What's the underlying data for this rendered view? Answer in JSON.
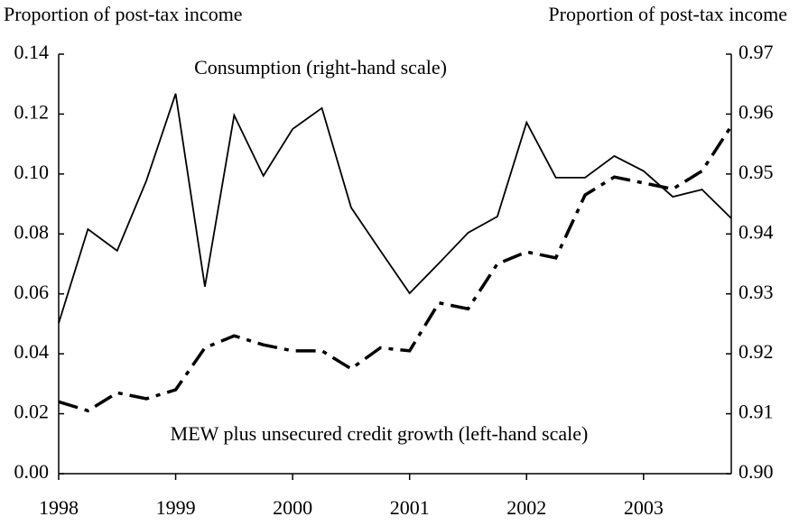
{
  "chart_data": {
    "type": "line",
    "left_axis_label": "Proportion of post-tax income",
    "right_axis_label": "Proportion of post-tax income",
    "annotations": [
      "Consumption (right-hand scale)",
      "MEW plus unsecured credit growth (left-hand scale)"
    ],
    "x": [
      1998,
      1998.25,
      1998.5,
      1998.75,
      1999,
      1999.25,
      1999.5,
      1999.75,
      2000,
      2000.25,
      2000.5,
      2000.75,
      2001,
      2001.25,
      2001.5,
      2001.75,
      2002,
      2002.25,
      2002.5,
      2002.75,
      2003,
      2003.25,
      2003.5,
      2003.75
    ],
    "xlim": [
      1998,
      2003.75
    ],
    "xticks": [
      1998,
      1999,
      2000,
      2001,
      2002,
      2003
    ],
    "ylim": [
      0,
      0.14
    ],
    "yticks": [
      {
        "value": 0,
        "label": "0.00"
      },
      0.02,
      0.04,
      0.06,
      0.08,
      {
        "value": 0.1,
        "label": "0.10"
      },
      0.12,
      0.14
    ],
    "y2lim": [
      0.9,
      0.97
    ],
    "y2ticks": [
      {
        "value": 0.9,
        "label": "0.90"
      },
      0.91,
      0.92,
      0.93,
      0.94,
      0.95,
      0.96,
      0.97
    ],
    "series": [
      {
        "name": "MEW plus unsecured credit growth",
        "color": "#000000",
        "axis": "y",
        "dash": "dashdot",
        "values": [
          0.024,
          0.021,
          0.027,
          0.025,
          0.028,
          0.042,
          0.046,
          0.043,
          0.041,
          0.041,
          0.035,
          0.042,
          0.041,
          0.057,
          0.055,
          0.07,
          0.074,
          0.072,
          0.093,
          0.099,
          0.097,
          0.095,
          0.101,
          0.116
        ]
      },
      {
        "name": "Consumption",
        "color": "#000000",
        "axis": "y2",
        "dash": "solid",
        "values": [
          0.9251,
          0.9408,
          0.9372,
          0.9489,
          0.9634,
          0.9312,
          0.9598,
          0.9497,
          0.9575,
          0.961,
          0.9444,
          0.9372,
          0.9301,
          0.9351,
          0.9402,
          0.9429,
          0.9586,
          0.9494,
          0.9494,
          0.953,
          0.9505,
          0.9462,
          0.9474,
          0.9426
        ]
      }
    ]
  }
}
